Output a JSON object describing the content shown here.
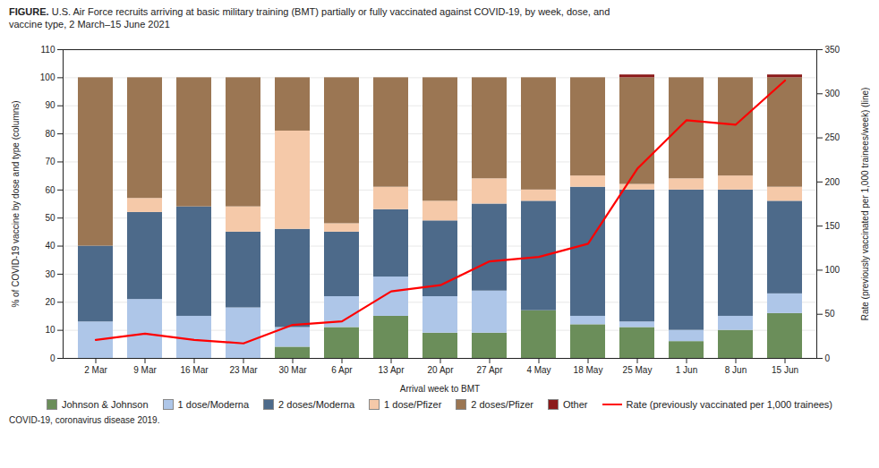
{
  "chart_data": {
    "type": "bar",
    "title": "FIGURE. U.S. Air Force recruits arriving at basic military training (BMT) partially or fully vaccinated against COVID-19, by week, dose, and\nvaccine type, 2 March–15 June 2021",
    "footnote": "COVID-19, coronavirus disease 2019.",
    "xlabel": "Arrival week to BMT",
    "ylabel": "% of COVID-19 vaccine by dose and type (columns)",
    "y2label": "Rate (previously vaccinated per 1,000 trainees/week) (line)",
    "categories": [
      "2 Mar",
      "9 Mar",
      "16 Mar",
      "23 Mar",
      "30 Mar",
      "6 Apr",
      "13 Apr",
      "20 Apr",
      "27 Apr",
      "4 May",
      "18 May",
      "25 May",
      "1 Jun",
      "8 Jun",
      "15 Jun"
    ],
    "series": [
      {
        "name": "Johnson & Johnson",
        "color": "#6b8e5a",
        "values": [
          0,
          0,
          0,
          0,
          4,
          11,
          15,
          9,
          9,
          17,
          12,
          11,
          6,
          10,
          16
        ]
      },
      {
        "name": "1 dose/Moderna",
        "color": "#aec6e8",
        "values": [
          13,
          21,
          15,
          18,
          7,
          11,
          14,
          13,
          15,
          0,
          3,
          2,
          4,
          5,
          7
        ]
      },
      {
        "name": "2 doses/Moderna",
        "color": "#4d6a8a",
        "values": [
          27,
          31,
          39,
          27,
          35,
          23,
          24,
          27,
          31,
          39,
          46,
          47,
          50,
          45,
          33
        ]
      },
      {
        "name": "1 dose/Pfizer",
        "color": "#f5c9a9",
        "values": [
          0,
          5,
          0,
          9,
          35,
          3,
          8,
          7,
          9,
          4,
          4,
          2,
          4,
          5,
          5
        ]
      },
      {
        "name": "2 doses/Pfizer",
        "color": "#9b7653",
        "values": [
          60,
          43,
          46,
          46,
          19,
          52,
          39,
          44,
          36,
          40,
          35,
          38,
          36,
          35,
          39
        ]
      },
      {
        "name": "Other",
        "color": "#8b1a1a",
        "values": [
          0,
          0,
          0,
          0,
          0,
          0,
          0,
          0,
          0,
          0,
          0,
          1,
          0,
          0,
          1
        ]
      },
      {
        "name": "Rate (previously vaccinated per 1,000 trainees)",
        "type": "line",
        "axis": "y2",
        "color": "#ff0000",
        "values": [
          21,
          28,
          21,
          17,
          38,
          42,
          76,
          83,
          110,
          115,
          130,
          215,
          270,
          265,
          315
        ]
      }
    ],
    "stacked": true,
    "ylim": [
      0,
      110
    ],
    "yticks": [
      0,
      10,
      20,
      30,
      40,
      50,
      60,
      70,
      80,
      90,
      100,
      110
    ],
    "y2lim": [
      0,
      350
    ],
    "y2ticks": [
      0,
      50,
      100,
      150,
      200,
      250,
      300,
      350
    ],
    "grid": true,
    "legend": "bottom"
  }
}
